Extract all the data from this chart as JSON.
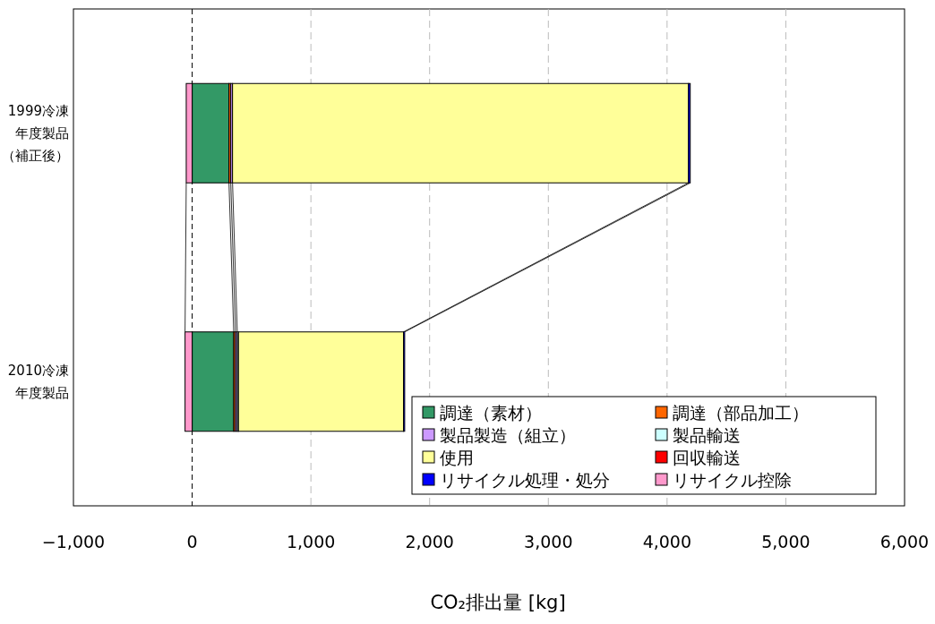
{
  "chart_data": {
    "type": "bar",
    "orientation": "horizontal",
    "stacked": true,
    "xlabel": "CO₂排出量 [kg]",
    "categories": [
      "1999冷凍年度製品（補正後）",
      "2010冷凍年度製品"
    ],
    "ref_lines": [
      {
        "axis": "x",
        "value": 0,
        "color": "#000000",
        "line_style": "dashed"
      }
    ],
    "series": [
      {
        "name": "調達（素材）",
        "color": "#339966",
        "values": [
          310,
          350
        ]
      },
      {
        "name": "調達（部品加工）",
        "color": "#ff6600",
        "values": [
          15,
          15
        ]
      },
      {
        "name": "製品製造（組立）",
        "color": "#cc99ff",
        "values": [
          15,
          15
        ]
      },
      {
        "name": "製品輸送",
        "color": "#ccffff",
        "values": [
          null,
          10
        ]
      },
      {
        "name": "使用",
        "color": "#ffff99",
        "values": [
          3840,
          1390
        ]
      },
      {
        "name": "回収輸送",
        "color": "#ff0000",
        "values": [
          null,
          null
        ]
      },
      {
        "name": "リサイクル処理・処分",
        "color": "#0000ff",
        "values": [
          15,
          10
        ]
      },
      {
        "name": "リサイクル控除",
        "color": "#ff99cc",
        "values": [
          -50,
          -60
        ]
      }
    ],
    "xlim": [
      -1000,
      6000
    ],
    "xticks": [
      {
        "value": -1000,
        "label": "−1,000"
      },
      {
        "value": 0,
        "label": "0"
      },
      {
        "value": 1000,
        "label": "1,000"
      },
      {
        "value": 2000,
        "label": "2,000"
      },
      {
        "value": 3000,
        "label": "3,000"
      },
      {
        "value": 4000,
        "label": "4,000"
      },
      {
        "value": 5000,
        "label": "5,000"
      },
      {
        "value": 6000,
        "label": "6,000"
      }
    ],
    "grid": "x",
    "legend": "bottom right"
  }
}
